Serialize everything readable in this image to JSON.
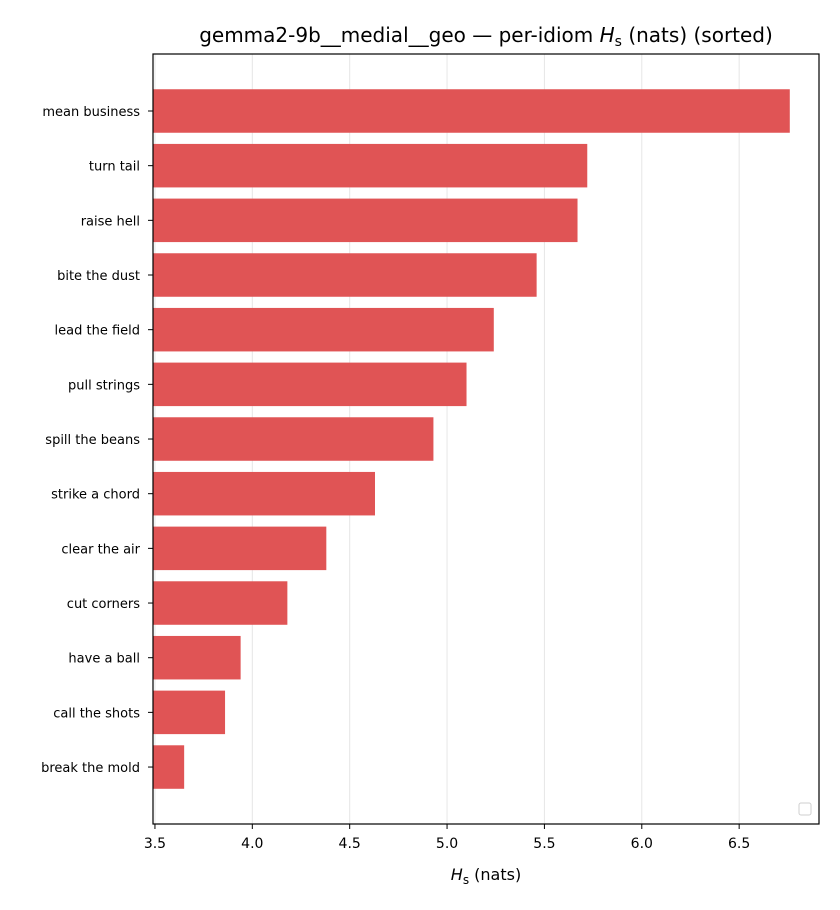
{
  "chart_data": {
    "type": "bar",
    "orientation": "horizontal",
    "title_prefix": "gemma2-9b__medial__geo — per-idiom ",
    "title_symbol": "H",
    "title_subscript": "s",
    "title_suffix": " (nats) (sorted)",
    "xlabel_symbol": "H",
    "xlabel_subscript": "s",
    "xlabel_suffix": " (nats)",
    "ylabel": "",
    "categories": [
      "mean business",
      "turn tail",
      "raise hell",
      "bite the dust",
      "lead the field",
      "pull strings",
      "spill the beans",
      "strike a chord",
      "clear the air",
      "cut corners",
      "have a ball",
      "call the shots",
      "break the mold"
    ],
    "values": [
      6.76,
      5.72,
      5.67,
      5.46,
      5.24,
      5.1,
      4.93,
      4.63,
      4.38,
      4.18,
      3.94,
      3.86,
      3.65
    ],
    "xlim": [
      3.49,
      6.91
    ],
    "x_ticks": [
      3.5,
      4.0,
      4.5,
      5.0,
      5.5,
      6.0,
      6.5
    ],
    "x_tick_labels": [
      "3.5",
      "4.0",
      "4.5",
      "5.0",
      "5.5",
      "6.0",
      "6.5"
    ],
    "grid": "vertical",
    "legend_placement": "bottom-right",
    "colors": {
      "bar": "#e05455",
      "grid": "#e6e6e6",
      "axis": "#000000"
    }
  }
}
